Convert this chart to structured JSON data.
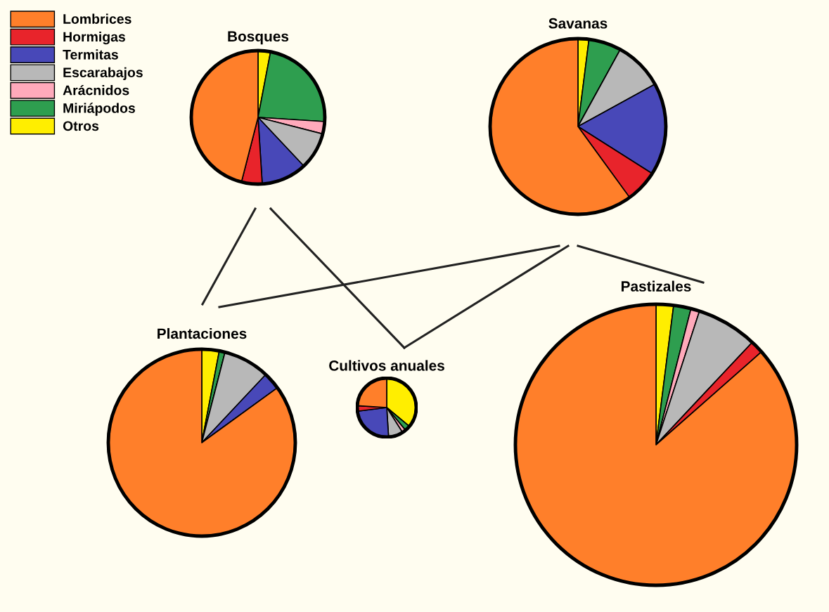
{
  "chart_data": [
    {
      "type": "pie",
      "title": "Bosques",
      "legend": "top left",
      "categories": [
        "Lombrices",
        "Hormigas",
        "Termitas",
        "Escarabajos",
        "Arácnidos",
        "Miriápodos",
        "Otros"
      ],
      "values": [
        46,
        5,
        11,
        9,
        3,
        23,
        3
      ],
      "colors": [
        "#ff7f2a",
        "#e8242b",
        "#4848b8",
        "#b8b8b8",
        "#ffaabb",
        "#2e9e4f",
        "#ffee00"
      ]
    },
    {
      "type": "pie",
      "title": "Savanas",
      "categories": [
        null,
        null,
        null,
        null,
        null,
        null,
        null
      ],
      "values": [
        60,
        6,
        17,
        9,
        0,
        6,
        2
      ],
      "colors": [
        "#ff7f2a",
        "#e8242b",
        "#4848b8",
        "#b8b8b8",
        "#ffaabb",
        "#2e9e4f",
        "#ffee00"
      ]
    },
    {
      "type": "pie",
      "title": "Plantaciones",
      "categories": [
        null,
        null,
        null,
        null,
        null,
        null,
        null
      ],
      "values": [
        85,
        0,
        3,
        8,
        0,
        1,
        3
      ],
      "colors": [
        "#ff7f2a",
        "#e8242b",
        "#4848b8",
        "#b8b8b8",
        "#ffaabb",
        "#2e9e4f",
        "#ffee00"
      ]
    },
    {
      "type": "pie",
      "title": "Cultivos anuales",
      "categories": [
        null,
        null,
        null,
        null,
        null,
        null,
        null
      ],
      "values": [
        24,
        3,
        24,
        8,
        2,
        3,
        36
      ],
      "colors": [
        "#ff7f2a",
        "#e8242b",
        "#4848b8",
        "#b8b8b8",
        "#ffaabb",
        "#2e9e4f",
        "#ffee00"
      ]
    },
    {
      "type": "pie",
      "title": "Pastizales",
      "categories": [
        null,
        null,
        null,
        null,
        null,
        null,
        null
      ],
      "values": [
        86.5,
        1.5,
        0,
        7,
        1,
        2,
        2
      ],
      "colors": [
        "#ff7f2a",
        "#e8242b",
        "#4848b8",
        "#b8b8b8",
        "#ffaabb",
        "#2e9e4f",
        "#ffee00"
      ]
    }
  ]
}
